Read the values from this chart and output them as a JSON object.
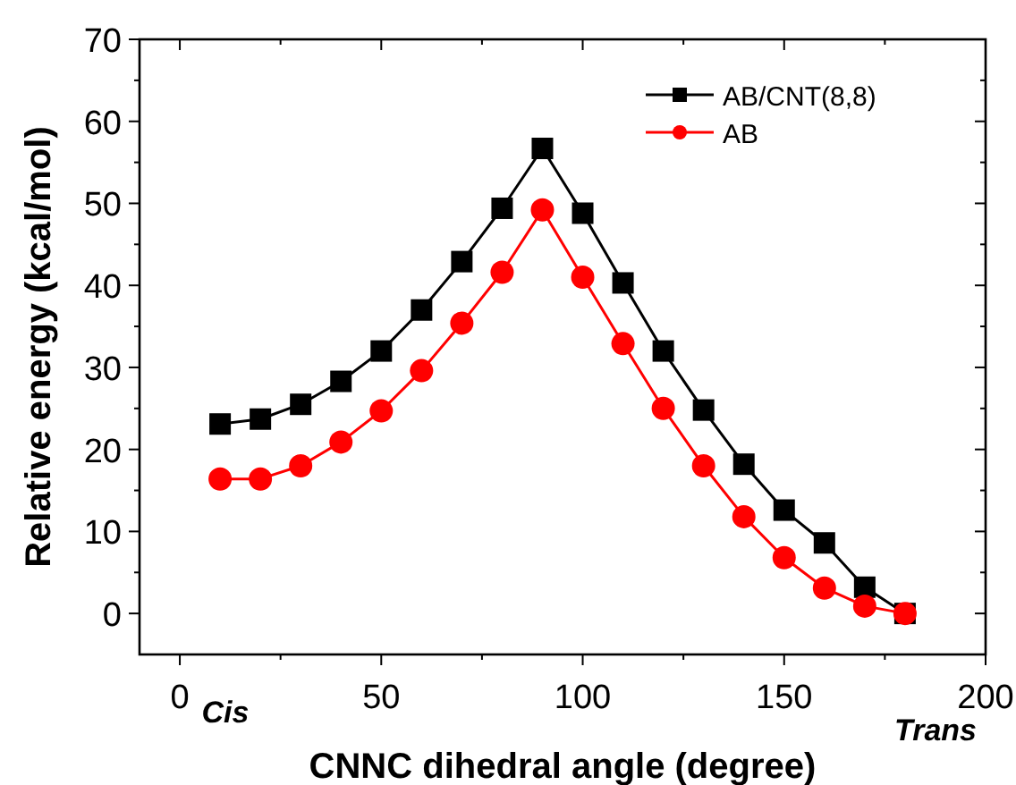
{
  "chart_data": {
    "type": "line",
    "xlabel": "CNNC dihedral angle (degree)",
    "ylabel": "Relative energy (kcal/mol)",
    "x": [
      10,
      20,
      30,
      40,
      50,
      60,
      70,
      80,
      90,
      100,
      110,
      120,
      130,
      140,
      150,
      160,
      170,
      180
    ],
    "series": [
      {
        "name": "AB/CNT(8,8)",
        "color": "#000000",
        "marker": "square",
        "values": [
          23.1,
          23.7,
          25.5,
          28.3,
          32.0,
          37.0,
          42.9,
          49.4,
          56.7,
          48.8,
          40.3,
          32.0,
          24.8,
          18.2,
          12.6,
          8.6,
          3.2,
          0
        ]
      },
      {
        "name": "AB",
        "color": "#ff0000",
        "marker": "circle",
        "values": [
          16.4,
          16.4,
          18.0,
          20.9,
          24.7,
          29.6,
          35.4,
          41.6,
          49.2,
          41.0,
          32.9,
          25.0,
          18.0,
          11.8,
          6.8,
          3.1,
          0.9,
          0
        ]
      }
    ],
    "xlim": [
      -10,
      200
    ],
    "xticks": [
      0,
      50,
      100,
      150,
      200
    ],
    "ylim": [
      -5,
      70
    ],
    "yticks": [
      0,
      10,
      20,
      30,
      40,
      50,
      60,
      70
    ],
    "annotations": [
      "Cis",
      "Trans"
    ],
    "legend": "top right",
    "grid": false,
    "line_style": "solid"
  }
}
